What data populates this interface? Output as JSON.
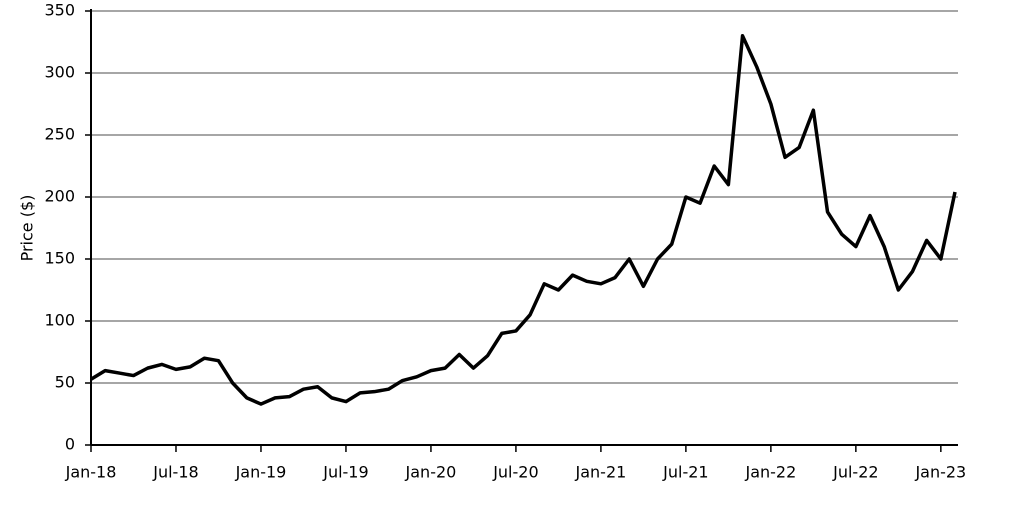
{
  "chart_data": {
    "type": "line",
    "y_label": "Price ($)",
    "x": [
      "2018-01",
      "2018-02",
      "2018-03",
      "2018-04",
      "2018-05",
      "2018-06",
      "2018-07",
      "2018-08",
      "2018-09",
      "2018-10",
      "2018-11",
      "2018-12",
      "2019-01",
      "2019-02",
      "2019-03",
      "2019-04",
      "2019-05",
      "2019-06",
      "2019-07",
      "2019-08",
      "2019-09",
      "2019-10",
      "2019-11",
      "2019-12",
      "2020-01",
      "2020-02",
      "2020-03",
      "2020-04",
      "2020-05",
      "2020-06",
      "2020-07",
      "2020-08",
      "2020-09",
      "2020-10",
      "2020-11",
      "2020-12",
      "2021-01",
      "2021-02",
      "2021-03",
      "2021-04",
      "2021-05",
      "2021-06",
      "2021-07",
      "2021-08",
      "2021-09",
      "2021-10",
      "2021-11",
      "2021-12",
      "2022-01",
      "2022-02",
      "2022-03",
      "2022-04",
      "2022-05",
      "2022-06",
      "2022-07",
      "2022-08",
      "2022-09",
      "2022-10",
      "2022-11",
      "2022-12",
      "2023-01",
      "2023-02"
    ],
    "series": [
      {
        "name": "Price",
        "color": "#000000",
        "values": [
          53,
          60,
          58,
          56,
          62,
          65,
          61,
          63,
          70,
          68,
          50,
          38,
          33,
          38,
          39,
          45,
          47,
          38,
          35,
          42,
          43,
          45,
          52,
          55,
          60,
          62,
          73,
          62,
          72,
          90,
          92,
          105,
          130,
          125,
          137,
          132,
          130,
          135,
          150,
          128,
          150,
          162,
          200,
          195,
          225,
          210,
          330,
          305,
          275,
          232,
          240,
          270,
          188,
          170,
          160,
          185,
          160,
          125,
          140,
          165,
          150,
          204
        ]
      }
    ],
    "xlim": [
      "2018-01",
      "2023-02"
    ],
    "xticks": [
      {
        "value": "2018-01",
        "label": "Jan-18"
      },
      {
        "value": "2018-07",
        "label": "Jul-18"
      },
      {
        "value": "2019-01",
        "label": "Jan-19"
      },
      {
        "value": "2019-07",
        "label": "Jul-19"
      },
      {
        "value": "2020-01",
        "label": "Jan-20"
      },
      {
        "value": "2020-07",
        "label": "Jul-20"
      },
      {
        "value": "2021-01",
        "label": "Jan-21"
      },
      {
        "value": "2021-07",
        "label": "Jul-21"
      },
      {
        "value": "2022-01",
        "label": "Jan-22"
      },
      {
        "value": "2022-07",
        "label": "Jul-22"
      },
      {
        "value": "2023-01",
        "label": "Jan-23"
      }
    ],
    "ylim": [
      0,
      350
    ],
    "yticks": [
      0,
      50,
      100,
      150,
      200,
      250,
      300,
      350
    ],
    "grid": true
  }
}
